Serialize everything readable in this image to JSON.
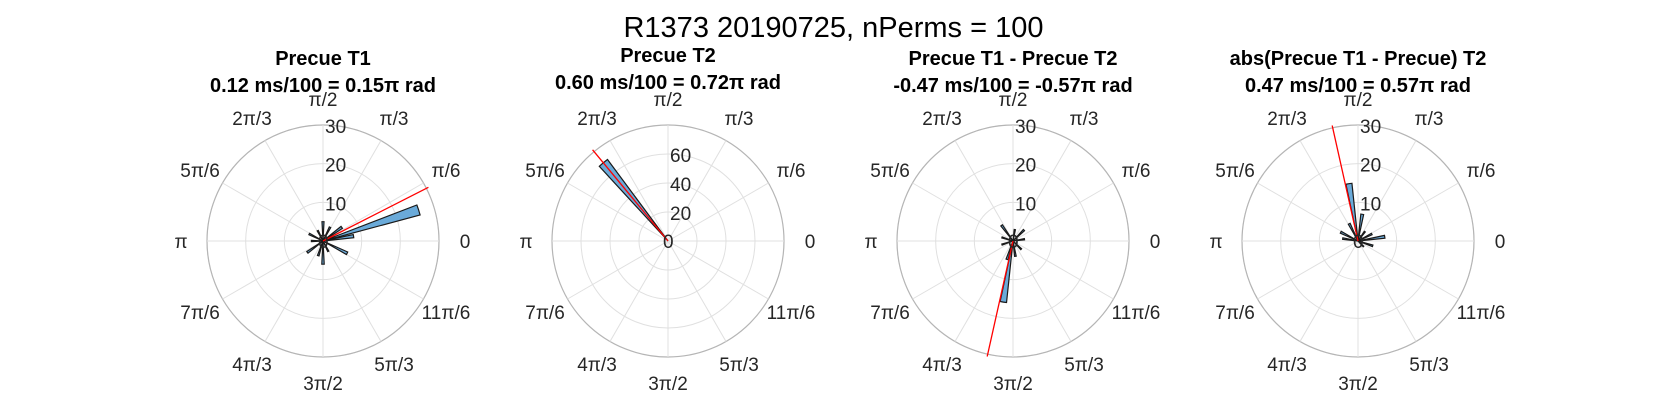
{
  "figure_title": "R1373 20190725, nPerms = 100",
  "colors": {
    "bar_fill": "#6aaad9",
    "bar_edge": "#1a1a1a",
    "mean_line": "#ff0000",
    "grid": "#e0e0e0",
    "outer_ring": "#b5b5b5"
  },
  "theta_labels": [
    "0",
    "π/6",
    "π/3",
    "π/2",
    "2π/3",
    "5π/6",
    "π",
    "7π/6",
    "4π/3",
    "3π/2",
    "5π/3",
    "11π/6"
  ],
  "chart_data": [
    {
      "type": "polar_histogram",
      "title": "Precue T1",
      "subtitle": "0.12 ms/100 = 0.15π rad",
      "rlim": [
        0,
        30
      ],
      "rticks": [
        "10",
        "20",
        "30"
      ],
      "mean_angle_pi": 0.15,
      "bins": [
        {
          "angle_pi": 0.1,
          "value": 26
        },
        {
          "angle_pi": 0.05,
          "value": 8
        },
        {
          "angle_pi": 0.2,
          "value": 6
        },
        {
          "angle_pi": 0.35,
          "value": 4
        },
        {
          "angle_pi": 0.5,
          "value": 5
        },
        {
          "angle_pi": 0.65,
          "value": 3
        },
        {
          "angle_pi": 0.85,
          "value": 4
        },
        {
          "angle_pi": 1.0,
          "value": 3
        },
        {
          "angle_pi": 1.2,
          "value": 5
        },
        {
          "angle_pi": 1.4,
          "value": 4
        },
        {
          "angle_pi": 1.5,
          "value": 6
        },
        {
          "angle_pi": 1.65,
          "value": 3
        },
        {
          "angle_pi": 1.85,
          "value": 7
        }
      ]
    },
    {
      "type": "polar_histogram",
      "title": "Precue T2",
      "subtitle": "0.60 ms/100 = 0.72π rad",
      "rlim": [
        0,
        80
      ],
      "rticks": [
        "20",
        "40",
        "60"
      ],
      "mean_angle_pi": 0.72,
      "bins": [
        {
          "angle_pi": 0.72,
          "value": 70
        }
      ]
    },
    {
      "type": "polar_histogram",
      "title": "Precue T1 - Precue T2",
      "subtitle": "-0.47 ms/100 = -0.57π rad",
      "rlim": [
        0,
        30
      ],
      "rticks": [
        "10",
        "20",
        "30"
      ],
      "mean_angle_pi": 1.43,
      "bins": [
        {
          "angle_pi": 1.45,
          "value": 16
        },
        {
          "angle_pi": 1.4,
          "value": 5
        },
        {
          "angle_pi": 1.55,
          "value": 4
        },
        {
          "angle_pi": 0.25,
          "value": 4
        },
        {
          "angle_pi": 0.45,
          "value": 3
        },
        {
          "angle_pi": 0.7,
          "value": 5
        },
        {
          "angle_pi": 0.9,
          "value": 3
        },
        {
          "angle_pi": 1.1,
          "value": 3
        },
        {
          "angle_pi": 1.75,
          "value": 3
        },
        {
          "angle_pi": 0.05,
          "value": 3
        }
      ]
    },
    {
      "type": "polar_histogram",
      "title": "abs(Precue T1 - Precue) T2",
      "subtitle": "0.47 ms/100 = 0.57π rad",
      "rlim": [
        0,
        30
      ],
      "rticks": [
        "10",
        "20",
        "30"
      ],
      "mean_angle_pi": 0.57,
      "bins": [
        {
          "angle_pi": 0.55,
          "value": 15
        },
        {
          "angle_pi": 0.45,
          "value": 7
        },
        {
          "angle_pi": 0.65,
          "value": 5
        },
        {
          "angle_pi": 0.85,
          "value": 5
        },
        {
          "angle_pi": 0.95,
          "value": 4
        },
        {
          "angle_pi": 0.05,
          "value": 7
        },
        {
          "angle_pi": 0.15,
          "value": 4
        },
        {
          "angle_pi": 0.3,
          "value": 3
        },
        {
          "angle_pi": 1.9,
          "value": 4
        },
        {
          "angle_pi": 1.75,
          "value": 2
        }
      ]
    }
  ]
}
